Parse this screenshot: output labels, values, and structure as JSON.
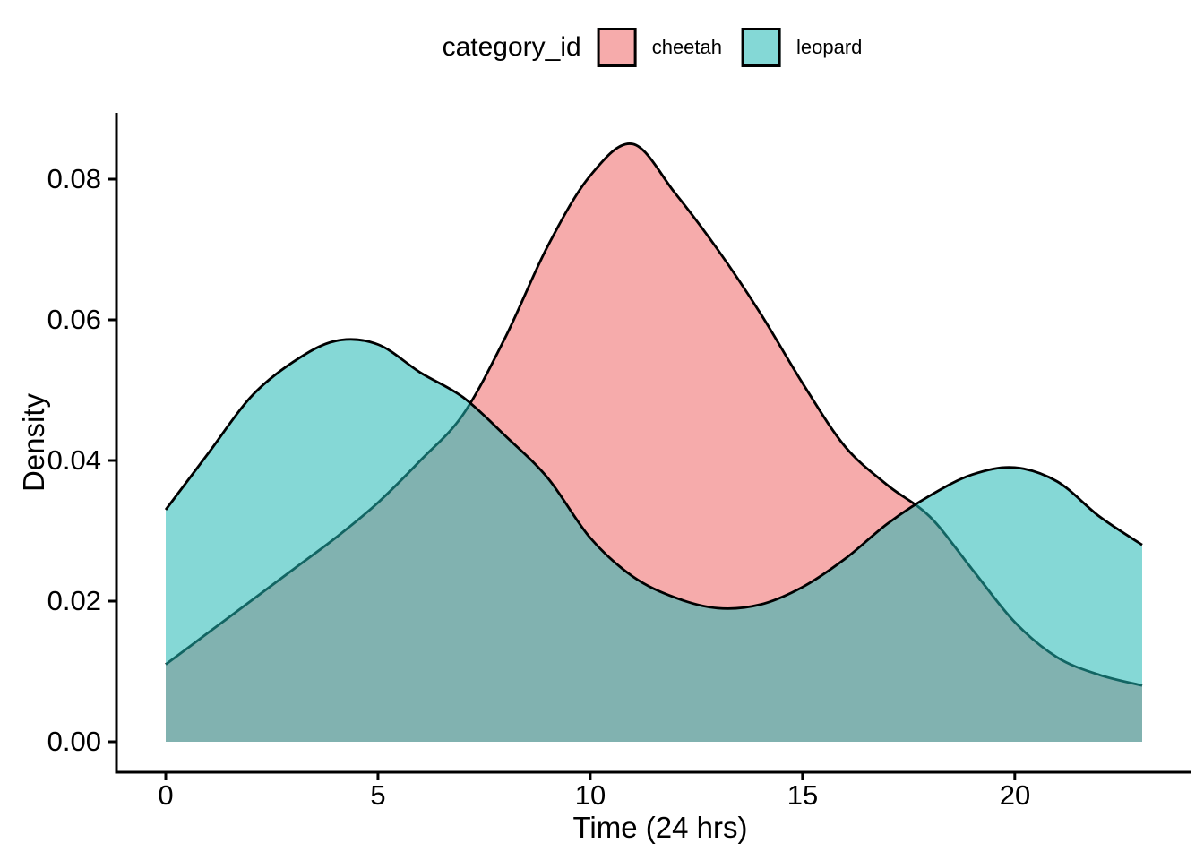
{
  "chart_data": {
    "type": "area",
    "subtype": "kernel-density",
    "title": "",
    "xlabel": "Time (24 hrs)",
    "ylabel": "Density",
    "legend": {
      "title": "category_id",
      "position": "top"
    },
    "x": [
      0,
      1,
      2,
      3,
      4,
      5,
      6,
      7,
      8,
      9,
      10,
      11,
      12,
      13,
      14,
      15,
      16,
      17,
      18,
      19,
      20,
      21,
      22,
      23
    ],
    "series": [
      {
        "name": "cheetah",
        "fill": "#F6ABAB",
        "legend_swatch": "#F6ABAB",
        "outline": "#000000",
        "values": [
          0.011,
          0.0155,
          0.02,
          0.0245,
          0.029,
          0.034,
          0.04,
          0.0465,
          0.0575,
          0.0705,
          0.0805,
          0.085,
          0.078,
          0.07,
          0.061,
          0.051,
          0.042,
          0.0365,
          0.032,
          0.0245,
          0.017,
          0.012,
          0.0095,
          0.008
        ]
      },
      {
        "name": "leopard",
        "fill": "rgba(32,184,180,0.55)",
        "legend_swatch": "#84D8D6",
        "overlap_color": "#84ACA8",
        "outline": "#000000",
        "values": [
          0.033,
          0.041,
          0.049,
          0.054,
          0.057,
          0.0565,
          0.0525,
          0.049,
          0.0435,
          0.0375,
          0.029,
          0.0235,
          0.0205,
          0.019,
          0.0195,
          0.022,
          0.026,
          0.031,
          0.035,
          0.038,
          0.039,
          0.037,
          0.032,
          0.028
        ]
      }
    ],
    "x_ticks": {
      "values": [
        0,
        5,
        10,
        15,
        20
      ],
      "labels": [
        "0",
        "5",
        "10",
        "15",
        "20"
      ]
    },
    "y_ticks": {
      "values": [
        0,
        0.02,
        0.04,
        0.06,
        0.08
      ],
      "labels": [
        "0.00",
        "0.02",
        "0.04",
        "0.06",
        "0.08"
      ]
    },
    "xlim": [
      0,
      23
    ],
    "ylim": [
      0,
      0.0875
    ],
    "grid": false,
    "theme": "classic",
    "peaks": {
      "cheetah_peak": {
        "x": 11.1,
        "density": 0.085
      },
      "leopard_peak_1": {
        "x": 4.4,
        "density": 0.0575
      },
      "leopard_min": {
        "x": 13.3,
        "density": 0.019
      },
      "leopard_peak_2": {
        "x": 19.9,
        "density": 0.0393
      }
    },
    "axis_color": "#000000",
    "text_color": "#000000"
  }
}
